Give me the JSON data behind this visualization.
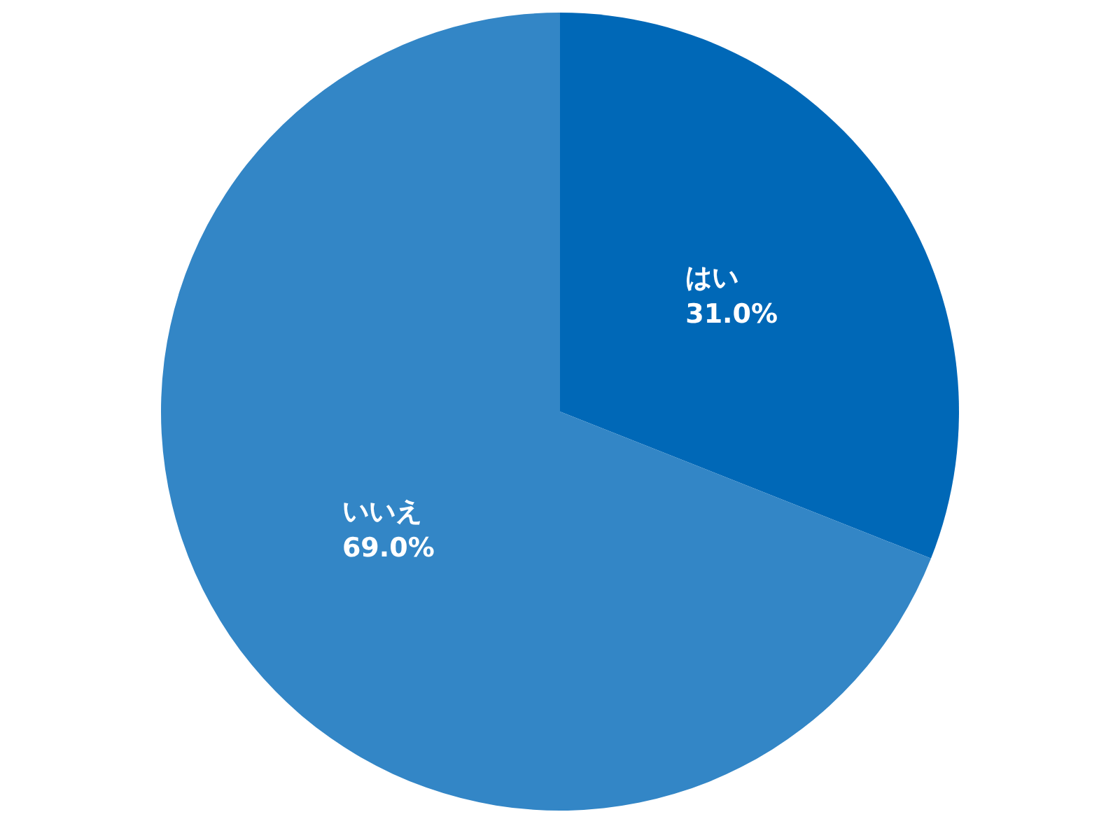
{
  "chart_data": {
    "type": "pie",
    "categories": [
      "はい",
      "いいえ"
    ],
    "values": [
      31.0,
      69.0
    ],
    "colors": [
      "#0068b7",
      "#3386c6"
    ],
    "value_labels": [
      "31.0%",
      "69.0%"
    ]
  }
}
